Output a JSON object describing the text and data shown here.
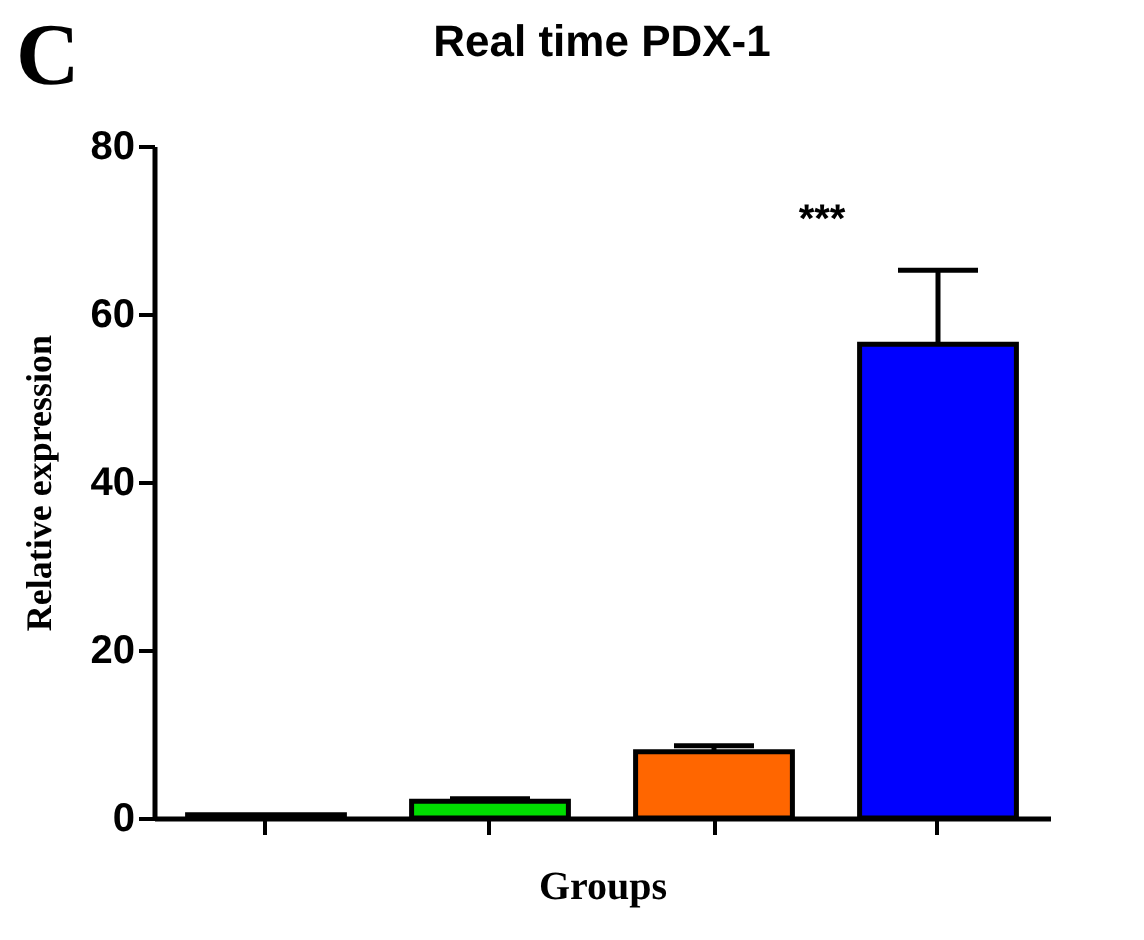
{
  "chart_data": {
    "type": "bar",
    "title": "Real time PDX-1",
    "xlabel": "Groups",
    "ylabel": "Relative expression",
    "categories": [
      null,
      null,
      null,
      null
    ],
    "values": [
      0.4,
      2.0,
      7.9,
      56.4
    ],
    "colors": [
      "#000000",
      "#00dd00",
      "#ff6600",
      "#0000ff"
    ],
    "errors": [
      null,
      [
        2.0,
        2.3
      ],
      [
        7.9,
        8.6
      ],
      [
        56.4,
        65.2
      ]
    ],
    "ylim": [
      0,
      80
    ],
    "yticks": [
      0,
      20,
      40,
      60,
      80
    ],
    "grid": false,
    "annotations": [
      "C",
      "***"
    ]
  }
}
